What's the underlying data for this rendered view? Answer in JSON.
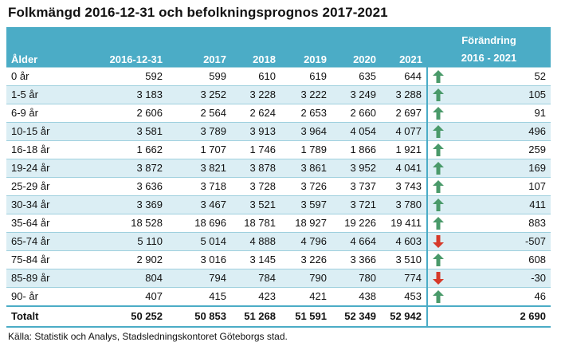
{
  "title": "Folkmängd 2016-12-31 och befolkningsprognos 2017-2021",
  "header": {
    "age": "Ålder",
    "col1": "2016-12-31",
    "col2": "2017",
    "col3": "2018",
    "col4": "2019",
    "col5": "2020",
    "col6": "2021",
    "change_line1": "Förändring",
    "change_line2": "2016 - 2021"
  },
  "rows": [
    {
      "age": "0 år",
      "v": [
        "592",
        "599",
        "610",
        "619",
        "635",
        "644"
      ],
      "trend": "up",
      "change": "52"
    },
    {
      "age": "1-5 år",
      "v": [
        "3 183",
        "3 252",
        "3 228",
        "3 222",
        "3 249",
        "3 288"
      ],
      "trend": "up",
      "change": "105"
    },
    {
      "age": "6-9 år",
      "v": [
        "2 606",
        "2 564",
        "2 624",
        "2 653",
        "2 660",
        "2 697"
      ],
      "trend": "up",
      "change": "91"
    },
    {
      "age": "10-15 år",
      "v": [
        "3 581",
        "3 789",
        "3 913",
        "3 964",
        "4 054",
        "4 077"
      ],
      "trend": "up",
      "change": "496"
    },
    {
      "age": "16-18 år",
      "v": [
        "1 662",
        "1 707",
        "1 746",
        "1 789",
        "1 866",
        "1 921"
      ],
      "trend": "up",
      "change": "259"
    },
    {
      "age": "19-24 år",
      "v": [
        "3 872",
        "3 821",
        "3 878",
        "3 861",
        "3 952",
        "4 041"
      ],
      "trend": "up",
      "change": "169"
    },
    {
      "age": "25-29 år",
      "v": [
        "3 636",
        "3 718",
        "3 728",
        "3 726",
        "3 737",
        "3 743"
      ],
      "trend": "up",
      "change": "107"
    },
    {
      "age": "30-34 år",
      "v": [
        "3 369",
        "3 467",
        "3 521",
        "3 597",
        "3 721",
        "3 780"
      ],
      "trend": "up",
      "change": "411"
    },
    {
      "age": "35-64 år",
      "v": [
        "18 528",
        "18 696",
        "18 781",
        "18 927",
        "19 226",
        "19 411"
      ],
      "trend": "up",
      "change": "883"
    },
    {
      "age": "65-74 år",
      "v": [
        "5 110",
        "5 014",
        "4 888",
        "4 796",
        "4 664",
        "4 603"
      ],
      "trend": "down",
      "change": "-507"
    },
    {
      "age": "75-84 år",
      "v": [
        "2 902",
        "3 016",
        "3 145",
        "3 226",
        "3 366",
        "3 510"
      ],
      "trend": "up",
      "change": "608"
    },
    {
      "age": "85-89 år",
      "v": [
        "804",
        "794",
        "784",
        "790",
        "780",
        "774"
      ],
      "trend": "down",
      "change": "-30"
    },
    {
      "age": "90- år",
      "v": [
        "407",
        "415",
        "423",
        "421",
        "438",
        "453"
      ],
      "trend": "up",
      "change": "46"
    }
  ],
  "total": {
    "label": "Totalt",
    "v": [
      "50 252",
      "50 853",
      "51 268",
      "51 591",
      "52 349",
      "52 942"
    ],
    "change": "2 690"
  },
  "source": "Källa: Statistik och Analys, Stadsledningskontoret Göteborgs stad.",
  "colors": {
    "header_bg": "#4bacc6",
    "band": "#dbeef4",
    "arrow_up": "#4a9a6a",
    "arrow_down": "#d63a2a"
  }
}
